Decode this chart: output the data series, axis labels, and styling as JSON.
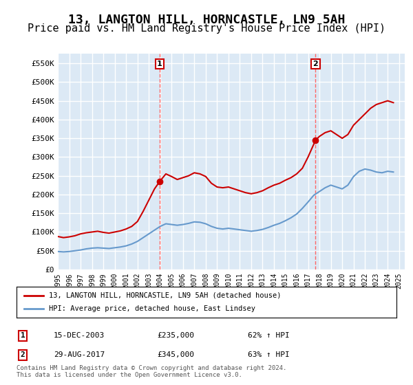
{
  "title": "13, LANGTON HILL, HORNCASTLE, LN9 5AH",
  "subtitle": "Price paid vs. HM Land Registry's House Price Index (HPI)",
  "title_fontsize": 13,
  "subtitle_fontsize": 11,
  "ylabel": "",
  "ylim": [
    0,
    575000
  ],
  "yticks": [
    0,
    50000,
    100000,
    150000,
    200000,
    250000,
    300000,
    350000,
    400000,
    450000,
    500000,
    550000
  ],
  "ytick_labels": [
    "£0",
    "£50K",
    "£100K",
    "£150K",
    "£200K",
    "£250K",
    "£300K",
    "£350K",
    "£400K",
    "£450K",
    "£500K",
    "£550K"
  ],
  "xlim_start": 1995.0,
  "xlim_end": 2025.5,
  "background_color": "#ffffff",
  "plot_bg_color": "#dce9f5",
  "grid_color": "#ffffff",
  "red_line_color": "#cc0000",
  "blue_line_color": "#6699cc",
  "marker_color": "#cc0000",
  "vline_color": "#ff6666",
  "transaction1": {
    "label": "1",
    "date_str": "15-DEC-2003",
    "price_str": "£235,000",
    "hpi_str": "62% ↑ HPI",
    "x_year": 2003.96,
    "y_price": 235000
  },
  "transaction2": {
    "label": "2",
    "date_str": "29-AUG-2017",
    "price_str": "£345,000",
    "hpi_str": "63% ↑ HPI",
    "x_year": 2017.66,
    "y_price": 345000
  },
  "legend_entry1": "13, LANGTON HILL, HORNCASTLE, LN9 5AH (detached house)",
  "legend_entry2": "HPI: Average price, detached house, East Lindsey",
  "footer_text": "Contains HM Land Registry data © Crown copyright and database right 2024.\nThis data is licensed under the Open Government Licence v3.0.",
  "red_x": [
    1995.0,
    1995.5,
    1996.0,
    1996.5,
    1997.0,
    1997.5,
    1998.0,
    1998.5,
    1999.0,
    1999.5,
    2000.0,
    2000.5,
    2001.0,
    2001.5,
    2002.0,
    2002.5,
    2003.0,
    2003.5,
    2003.96,
    2004.5,
    2005.0,
    2005.5,
    2006.0,
    2006.5,
    2007.0,
    2007.5,
    2008.0,
    2008.5,
    2009.0,
    2009.5,
    2010.0,
    2010.5,
    2011.0,
    2011.5,
    2012.0,
    2012.5,
    2013.0,
    2013.5,
    2014.0,
    2014.5,
    2015.0,
    2015.5,
    2016.0,
    2016.5,
    2017.0,
    2017.66,
    2018.0,
    2018.5,
    2019.0,
    2019.5,
    2020.0,
    2020.5,
    2021.0,
    2021.5,
    2022.0,
    2022.5,
    2023.0,
    2023.5,
    2024.0,
    2024.5
  ],
  "red_y": [
    88000,
    85000,
    87000,
    90000,
    95000,
    98000,
    100000,
    102000,
    99000,
    97000,
    100000,
    103000,
    108000,
    115000,
    128000,
    155000,
    185000,
    215000,
    235000,
    255000,
    248000,
    240000,
    245000,
    250000,
    258000,
    255000,
    248000,
    230000,
    220000,
    218000,
    220000,
    215000,
    210000,
    205000,
    202000,
    205000,
    210000,
    218000,
    225000,
    230000,
    238000,
    245000,
    255000,
    270000,
    300000,
    345000,
    355000,
    365000,
    370000,
    360000,
    350000,
    360000,
    385000,
    400000,
    415000,
    430000,
    440000,
    445000,
    450000,
    445000
  ],
  "blue_x": [
    1995.0,
    1995.5,
    1996.0,
    1996.5,
    1997.0,
    1997.5,
    1998.0,
    1998.5,
    1999.0,
    1999.5,
    2000.0,
    2000.5,
    2001.0,
    2001.5,
    2002.0,
    2002.5,
    2003.0,
    2003.5,
    2004.0,
    2004.5,
    2005.0,
    2005.5,
    2006.0,
    2006.5,
    2007.0,
    2007.5,
    2008.0,
    2008.5,
    2009.0,
    2009.5,
    2010.0,
    2010.5,
    2011.0,
    2011.5,
    2012.0,
    2012.5,
    2013.0,
    2013.5,
    2014.0,
    2014.5,
    2015.0,
    2015.5,
    2016.0,
    2016.5,
    2017.0,
    2017.5,
    2018.0,
    2018.5,
    2019.0,
    2019.5,
    2020.0,
    2020.5,
    2021.0,
    2021.5,
    2022.0,
    2022.5,
    2023.0,
    2023.5,
    2024.0,
    2024.5
  ],
  "blue_y": [
    48000,
    47000,
    48000,
    50000,
    52000,
    55000,
    57000,
    58000,
    57000,
    56000,
    58000,
    60000,
    63000,
    68000,
    75000,
    85000,
    95000,
    105000,
    115000,
    122000,
    120000,
    118000,
    120000,
    123000,
    127000,
    126000,
    122000,
    115000,
    110000,
    108000,
    110000,
    108000,
    106000,
    104000,
    102000,
    104000,
    107000,
    112000,
    118000,
    123000,
    130000,
    138000,
    148000,
    163000,
    180000,
    198000,
    208000,
    218000,
    225000,
    220000,
    215000,
    225000,
    248000,
    262000,
    268000,
    265000,
    260000,
    258000,
    262000,
    260000
  ]
}
